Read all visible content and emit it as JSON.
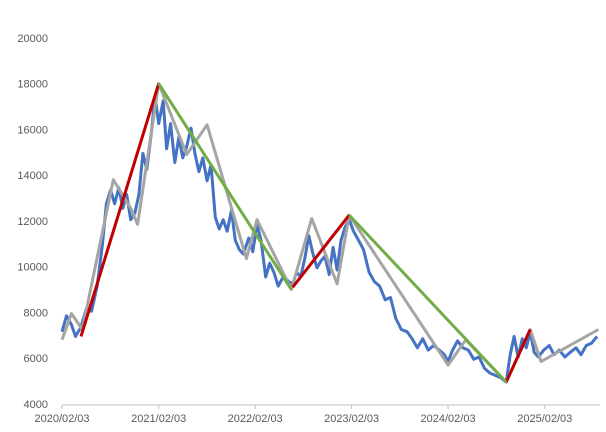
{
  "chart_data": {
    "type": "line",
    "xlim": [
      "2020/02/03",
      "2025/08/31"
    ],
    "xticks": [
      "2020/02/03",
      "2021/02/03",
      "2022/02/03",
      "2023/02/03",
      "2024/02/03",
      "2025/02/03"
    ],
    "ylim": [
      4000,
      20000
    ],
    "yticks": [
      4000,
      6000,
      8000,
      10000,
      12000,
      14000,
      16000,
      18000,
      20000
    ],
    "grid": false,
    "series": [
      {
        "color": "#4472c4",
        "x": [
          "2020/02/03",
          "2020/02/20",
          "2020/03/10",
          "2020/03/25",
          "2020/04/15",
          "2020/05/05",
          "2020/05/25",
          "2020/06/15",
          "2020/07/05",
          "2020/07/20",
          "2020/08/05",
          "2020/08/20",
          "2020/09/05",
          "2020/09/20",
          "2020/10/05",
          "2020/10/20",
          "2020/11/05",
          "2020/11/20",
          "2020/12/05",
          "2020/12/20",
          "2021/01/05",
          "2021/01/20",
          "2021/02/03",
          "2021/02/20",
          "2021/03/05",
          "2021/03/20",
          "2021/04/05",
          "2021/04/20",
          "2021/05/05",
          "2021/05/20",
          "2021/06/05",
          "2021/06/20",
          "2021/07/05",
          "2021/07/20",
          "2021/08/05",
          "2021/08/20",
          "2021/09/05",
          "2021/09/20",
          "2021/10/05",
          "2021/10/20",
          "2021/11/05",
          "2021/11/20",
          "2021/12/05",
          "2021/12/20",
          "2022/01/10",
          "2022/01/25",
          "2022/02/10",
          "2022/02/25",
          "2022/03/15",
          "2022/03/30",
          "2022/04/15",
          "2022/05/01",
          "2022/05/20",
          "2022/06/10",
          "2022/06/25",
          "2022/07/10",
          "2022/07/25",
          "2022/08/10",
          "2022/08/25",
          "2022/09/10",
          "2022/09/25",
          "2022/10/10",
          "2022/10/25",
          "2022/11/10",
          "2022/11/25",
          "2022/12/10",
          "2022/12/25",
          "2023/01/10",
          "2023/01/25",
          "2023/02/10",
          "2023/03/01",
          "2023/03/20",
          "2023/04/10",
          "2023/04/30",
          "2023/05/20",
          "2023/06/10",
          "2023/06/30",
          "2023/07/20",
          "2023/08/10",
          "2023/09/01",
          "2023/09/20",
          "2023/10/10",
          "2023/10/30",
          "2023/11/20",
          "2023/12/10",
          "2024/01/01",
          "2024/01/20",
          "2024/02/03",
          "2024/02/20",
          "2024/03/10",
          "2024/03/30",
          "2024/04/20",
          "2024/05/10",
          "2024/05/30",
          "2024/06/20",
          "2024/07/10",
          "2024/07/30",
          "2024/08/20",
          "2024/09/10",
          "2024/09/25",
          "2024/10/10",
          "2024/10/25",
          "2024/11/10",
          "2024/11/25",
          "2024/12/10",
          "2024/12/25",
          "2025/01/10",
          "2025/01/30",
          "2025/02/20",
          "2025/03/10",
          "2025/03/30",
          "2025/04/20",
          "2025/05/10",
          "2025/06/01",
          "2025/06/20",
          "2025/07/10",
          "2025/07/30",
          "2025/08/20"
        ],
        "values": [
          7200,
          7900,
          7500,
          7000,
          7400,
          8200,
          8100,
          9200,
          11000,
          12800,
          13400,
          12800,
          13500,
          12600,
          13200,
          12100,
          12400,
          13200,
          15000,
          14300,
          15800,
          17500,
          16300,
          17300,
          15200,
          16300,
          14600,
          15700,
          14800,
          15300,
          16100,
          15000,
          14200,
          14800,
          13800,
          14500,
          12200,
          11700,
          12100,
          11600,
          12500,
          11200,
          10800,
          10600,
          11300,
          10700,
          11900,
          11200,
          9600,
          10200,
          9800,
          9200,
          9600,
          9400,
          9300,
          9800,
          9600,
          10400,
          11400,
          10600,
          10000,
          10300,
          10500,
          9700,
          10900,
          9900,
          11200,
          11800,
          12100,
          11600,
          11200,
          10800,
          9800,
          9400,
          9200,
          8600,
          8700,
          7800,
          7300,
          7200,
          6900,
          6500,
          6900,
          6400,
          6600,
          6400,
          6200,
          5900,
          6400,
          6800,
          6500,
          6400,
          6000,
          6100,
          5600,
          5400,
          5300,
          5200,
          5000,
          6200,
          7000,
          6100,
          6900,
          6500,
          7200,
          6300,
          6100,
          6400,
          6600,
          6200,
          6400,
          6100,
          6300,
          6500,
          6200,
          6600,
          6700,
          7000
        ]
      },
      {
        "color": "#a5a5a5",
        "x": [
          "2020/02/03",
          "2020/03/10",
          "2020/04/20",
          "2020/08/15",
          "2020/10/20",
          "2020/11/15",
          "2021/02/03",
          "2021/05/20",
          "2021/08/05",
          "2022/01/01",
          "2022/02/10",
          "2022/06/20",
          "2022/09/05",
          "2022/12/10",
          "2023/01/25",
          "2024/02/03",
          "2024/04/10",
          "2024/09/10",
          "2024/12/10",
          "2025/01/20",
          "2025/08/25"
        ],
        "values": [
          6850,
          8000,
          7300,
          13850,
          12600,
          11900,
          18050,
          14950,
          16250,
          10400,
          12100,
          9050,
          12150,
          9300,
          12300,
          5750,
          6850,
          5000,
          7300,
          5900,
          7300
        ]
      },
      {
        "color": "#c00000",
        "x": [
          "2020/04/15",
          "2021/02/03",
          null,
          "2022/06/25",
          "2023/01/25",
          null,
          "2024/09/10",
          "2024/12/10"
        ],
        "values": [
          7000,
          18050,
          null,
          9150,
          12300,
          null,
          5000,
          7300
        ]
      },
      {
        "color": "#70ad47",
        "x": [
          "2021/02/03",
          "2022/06/20",
          null,
          "2023/01/25",
          "2024/09/10"
        ],
        "values": [
          18050,
          9050,
          null,
          12300,
          5000
        ]
      }
    ]
  }
}
